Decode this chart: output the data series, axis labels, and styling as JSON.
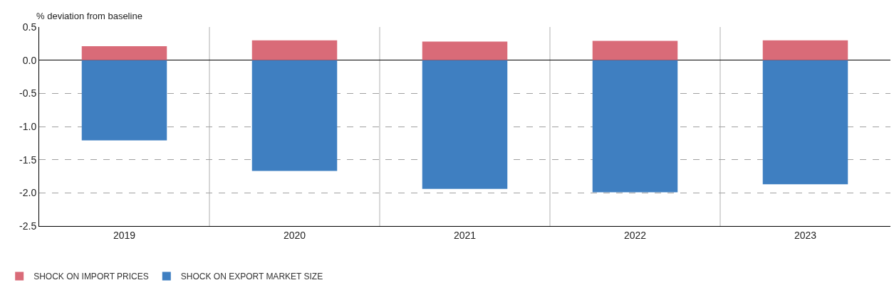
{
  "chart_data": {
    "type": "bar",
    "stacked": true,
    "ylabel": "% deviation from baseline",
    "categories": [
      "2019",
      "2020",
      "2021",
      "2022",
      "2023"
    ],
    "series": [
      {
        "name": "SHOCK ON IMPORT PRICES",
        "color": "#d96b78",
        "values": [
          0.21,
          0.3,
          0.28,
          0.29,
          0.3
        ]
      },
      {
        "name": "SHOCK ON EXPORT MARKET SIZE",
        "color": "#3f7fc1",
        "values": [
          -1.21,
          -1.67,
          -1.94,
          -1.99,
          -1.87
        ]
      }
    ],
    "ylim": [
      -2.5,
      0.5
    ],
    "yticks": [
      {
        "value": 0.5,
        "label": "0.5"
      },
      {
        "value": 0,
        "label": "0.0"
      },
      {
        "value": -0.5,
        "label": "-0.5"
      },
      {
        "value": -1,
        "label": "-1.0"
      },
      {
        "value": -1.5,
        "label": "-1.5"
      },
      {
        "value": -2,
        "label": "-2.0"
      },
      {
        "value": -2.5,
        "label": "-2.5"
      }
    ],
    "grid": true,
    "legend": "bottom left"
  }
}
